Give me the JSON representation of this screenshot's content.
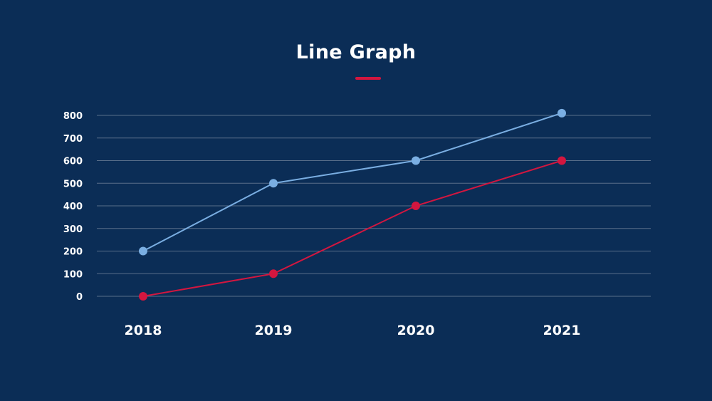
{
  "title": "Line Graph",
  "colors": {
    "background": "#0b2d56",
    "accent": "#d3163f",
    "grid": "#5a6f8a",
    "text": "#ffffff"
  },
  "chart_data": {
    "type": "line",
    "title": "Line Graph",
    "categories": [
      "2018",
      "2019",
      "2020",
      "2021"
    ],
    "yticks": [
      0,
      100,
      200,
      300,
      400,
      500,
      600,
      700,
      800
    ],
    "ylim": [
      0,
      800
    ],
    "grid": true,
    "legend": "none",
    "series": [
      {
        "color": "#7aaee2",
        "values": [
          200,
          500,
          600,
          810
        ]
      },
      {
        "color": "#d3163f",
        "values": [
          0,
          100,
          400,
          600
        ]
      }
    ]
  }
}
